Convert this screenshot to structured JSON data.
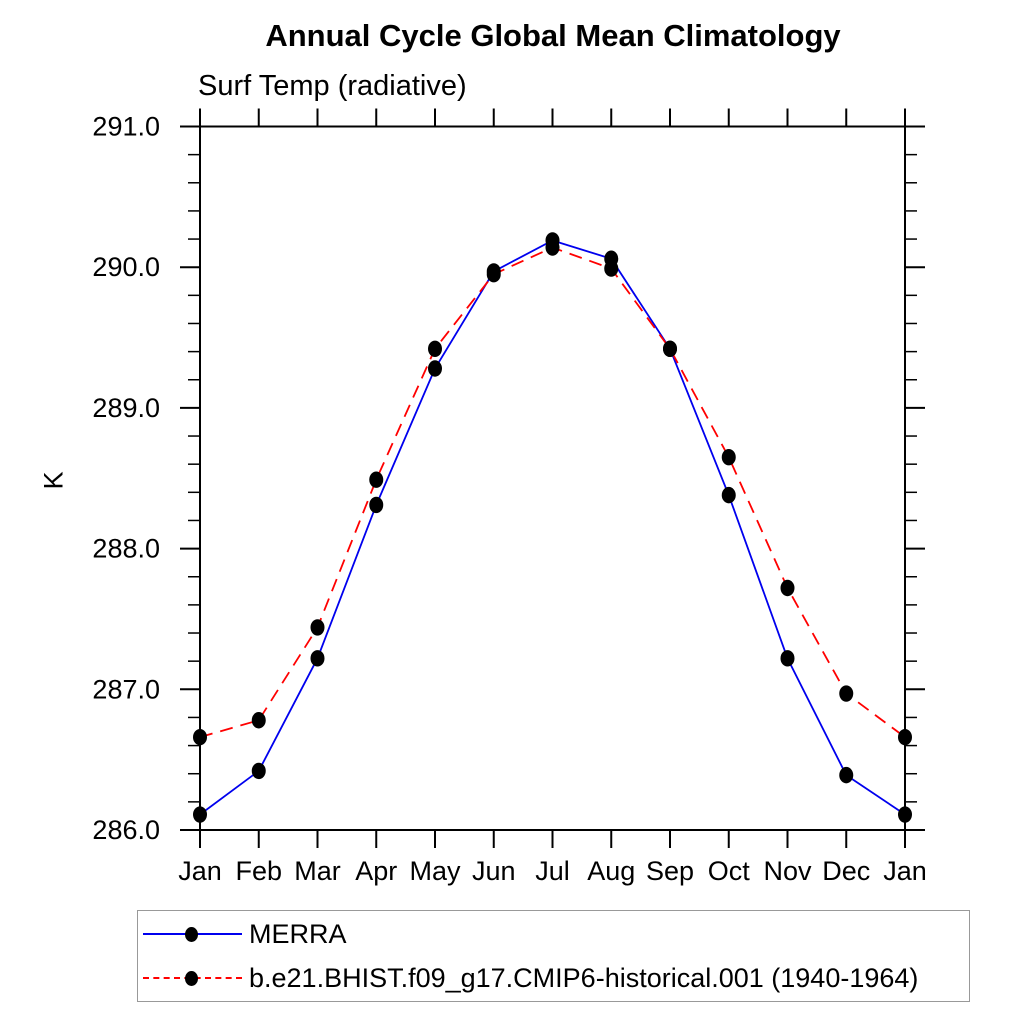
{
  "chart_data": {
    "type": "line",
    "title": "Annual Cycle Global Mean Climatology",
    "subtitle": "Surf Temp (radiative)",
    "ylabel": "K",
    "x_categories": [
      "Jan",
      "Feb",
      "Mar",
      "Apr",
      "May",
      "Jun",
      "Jul",
      "Aug",
      "Sep",
      "Oct",
      "Nov",
      "Dec",
      "Jan"
    ],
    "ylim": [
      286.0,
      291.0
    ],
    "y_tick_labels": [
      "286.0",
      "287.0",
      "288.0",
      "289.0",
      "290.0",
      "291.0"
    ],
    "y_minor_step": 0.2,
    "grid": false,
    "legend_position": "bottom-left",
    "axis_color": "#000000",
    "series": [
      {
        "name": "MERRA",
        "color": "#0000ee",
        "style": "solid",
        "marker": "filled-circle",
        "marker_color": "#000000",
        "values": [
          286.11,
          286.42,
          287.22,
          288.31,
          289.28,
          289.97,
          290.19,
          290.06,
          289.42,
          288.38,
          287.22,
          286.39,
          286.11
        ]
      },
      {
        "name": "b.e21.BHIST.f09_g17.CMIP6-historical.001 (1940-1964)",
        "color": "#ff0000",
        "style": "dashed",
        "marker": "filled-circle",
        "marker_color": "#000000",
        "values": [
          286.66,
          286.78,
          287.44,
          288.49,
          289.42,
          289.95,
          290.14,
          289.99,
          289.42,
          288.65,
          287.72,
          286.97,
          286.66
        ]
      }
    ]
  }
}
